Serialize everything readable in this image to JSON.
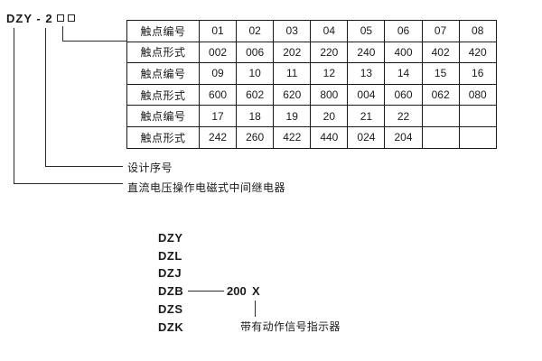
{
  "model_code": {
    "text": "DZY - 2"
  },
  "labels": {
    "design_serial": "设计序号",
    "product_description": "直流电压操作电磁式中间继电器"
  },
  "table": {
    "rows": [
      {
        "header": "触点编号",
        "cells": [
          "01",
          "02",
          "03",
          "04",
          "05",
          "06",
          "07",
          "08"
        ]
      },
      {
        "header": "触点形式",
        "cells": [
          "002",
          "006",
          "202",
          "220",
          "240",
          "400",
          "402",
          "420"
        ]
      },
      {
        "header": "触点编号",
        "cells": [
          "09",
          "10",
          "11",
          "12",
          "13",
          "14",
          "15",
          "16"
        ]
      },
      {
        "header": "触点形式",
        "cells": [
          "600",
          "602",
          "620",
          "800",
          "004",
          "060",
          "062",
          "080"
        ]
      },
      {
        "header": "触点编号",
        "cells": [
          "17",
          "18",
          "19",
          "20",
          "21",
          "22",
          "",
          ""
        ]
      },
      {
        "header": "触点形式",
        "cells": [
          "242",
          "260",
          "422",
          "440",
          "024",
          "204",
          "",
          ""
        ]
      }
    ]
  },
  "series": {
    "codes": [
      "DZY",
      "DZL",
      "DZJ",
      "DZB",
      "DZS",
      "DZK"
    ],
    "dzb_value": "200",
    "dzb_variant": "X",
    "indicator_note": "带有动作信号指示器"
  }
}
